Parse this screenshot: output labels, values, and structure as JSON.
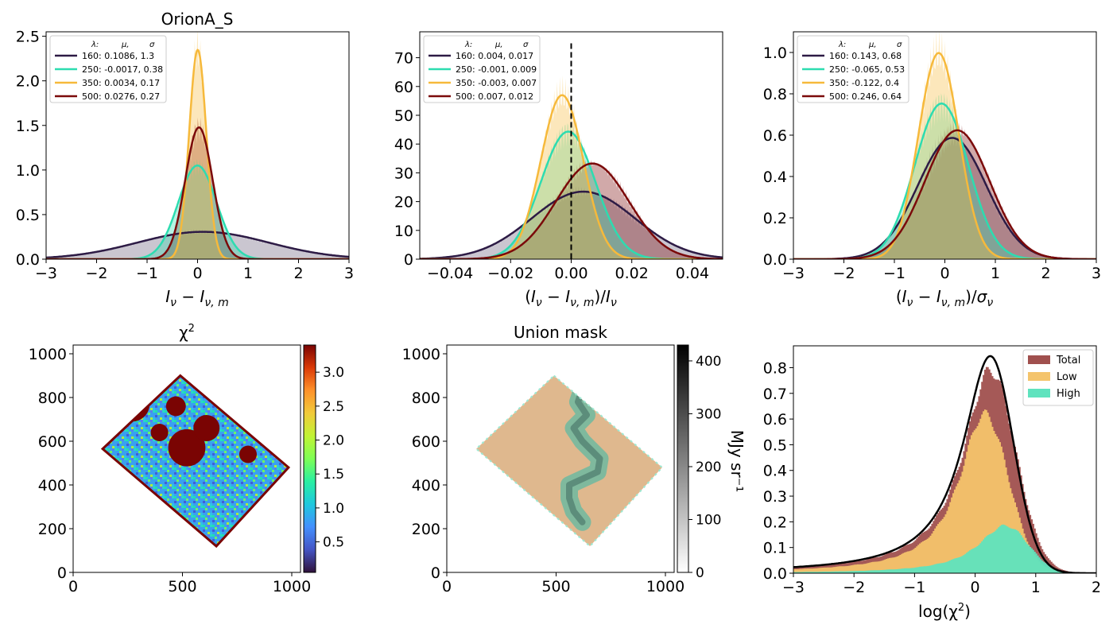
{
  "figure_title": "OrionA_S",
  "chart_data": [
    {
      "id": "p1",
      "type": "line",
      "title": "OrionA_S",
      "xlabel": "I_ν − I_ν,m",
      "ylabel": "",
      "xlim": [
        -3,
        3
      ],
      "ylim": [
        0,
        2.55
      ],
      "xticks": [
        -3,
        -2,
        -1,
        0,
        1,
        2,
        3
      ],
      "yticks": [
        0.0,
        0.5,
        1.0,
        1.5,
        2.0,
        2.5
      ],
      "legend_position": "upper-left",
      "legend_header": [
        "λ:",
        "μ,",
        "σ"
      ],
      "series": [
        {
          "name": "160",
          "label": "160: 0.1086,  1.3",
          "mu": 0.1086,
          "sigma": 1.3,
          "color": "#2d1b45"
        },
        {
          "name": "250",
          "label": "250: -0.0017,  0.38",
          "mu": -0.0017,
          "sigma": 0.38,
          "color": "#2ddcb0"
        },
        {
          "name": "350",
          "label": "350: 0.0034,  0.17",
          "mu": 0.0034,
          "sigma": 0.17,
          "color": "#f6b93b"
        },
        {
          "name": "500",
          "label": "500: 0.0276,  0.27",
          "mu": 0.0276,
          "sigma": 0.27,
          "color": "#7b0a0a"
        }
      ]
    },
    {
      "id": "p2",
      "type": "line",
      "title": "",
      "xlabel": "(I_ν − I_ν,m)/I_ν",
      "ylabel": "",
      "xlim": [
        -0.05,
        0.05
      ],
      "ylim": [
        0,
        79
      ],
      "xticks": [
        -0.04,
        -0.02,
        0.0,
        0.02,
        0.04
      ],
      "xtick_labels": [
        "−0.04",
        "−0.02",
        "0.00",
        "0.02",
        "0.04"
      ],
      "yticks": [
        0,
        10,
        20,
        30,
        40,
        50,
        60,
        70
      ],
      "vline": 0,
      "legend_position": "upper-left",
      "legend_header": [
        "λ:",
        "μ,",
        "σ"
      ],
      "series": [
        {
          "name": "160",
          "label": "160: 0.004,  0.017",
          "mu": 0.004,
          "sigma": 0.017,
          "color": "#2d1b45"
        },
        {
          "name": "250",
          "label": "250: -0.001,  0.009",
          "mu": -0.001,
          "sigma": 0.009,
          "color": "#2ddcb0"
        },
        {
          "name": "350",
          "label": "350: -0.003,  0.007",
          "mu": -0.003,
          "sigma": 0.007,
          "color": "#f6b93b"
        },
        {
          "name": "500",
          "label": "500: 0.007,  0.012",
          "mu": 0.007,
          "sigma": 0.012,
          "color": "#7b0a0a"
        }
      ]
    },
    {
      "id": "p3",
      "type": "line",
      "title": "",
      "xlabel": "(I_ν − I_ν,m)/σ_ν",
      "ylabel": "",
      "xlim": [
        -3,
        3
      ],
      "ylim": [
        0,
        1.1
      ],
      "xticks": [
        -3,
        -2,
        -1,
        0,
        1,
        2,
        3
      ],
      "yticks": [
        0.0,
        0.2,
        0.4,
        0.6,
        0.8,
        1.0
      ],
      "legend_position": "upper-left",
      "legend_header": [
        "λ:",
        "μ,",
        "σ"
      ],
      "series": [
        {
          "name": "160",
          "label": "160: 0.143,  0.68",
          "mu": 0.143,
          "sigma": 0.68,
          "color": "#2d1b45"
        },
        {
          "name": "250",
          "label": "250: -0.065,  0.53",
          "mu": -0.065,
          "sigma": 0.53,
          "color": "#2ddcb0"
        },
        {
          "name": "350",
          "label": "350: -0.122,  0.4",
          "mu": -0.122,
          "sigma": 0.4,
          "color": "#f6b93b"
        },
        {
          "name": "500",
          "label": "500: 0.246,  0.64",
          "mu": 0.246,
          "sigma": 0.64,
          "color": "#7b0a0a"
        }
      ]
    },
    {
      "id": "p4",
      "type": "heatmap",
      "title": "χ²",
      "xlim": [
        0,
        1040
      ],
      "ylim": [
        0,
        1040
      ],
      "xticks": [
        0,
        500,
        1000
      ],
      "yticks": [
        0,
        200,
        400,
        600,
        800,
        1000
      ],
      "colormap": "turbo",
      "colorbar_range": [
        0.05,
        3.4
      ],
      "colorbar_ticks": [
        0.5,
        1.0,
        1.5,
        2.0,
        2.5,
        3.0
      ],
      "region_corners": [
        [
          490,
          900
        ],
        [
          985,
          480
        ],
        [
          655,
          120
        ],
        [
          135,
          565
        ]
      ],
      "high_chi2_patches": [
        [
          520,
          570,
          85
        ],
        [
          270,
          770,
          80
        ],
        [
          610,
          660,
          60
        ],
        [
          690,
          830,
          45
        ],
        [
          395,
          640,
          40
        ],
        [
          230,
          290,
          35
        ],
        [
          470,
          760,
          45
        ],
        [
          800,
          540,
          40
        ]
      ]
    },
    {
      "id": "p5",
      "type": "heatmap",
      "title": "Union mask",
      "xlim": [
        0,
        1040
      ],
      "ylim": [
        0,
        1040
      ],
      "xticks": [
        0,
        500,
        1000
      ],
      "yticks": [
        0,
        200,
        400,
        600,
        800,
        1000
      ],
      "colormap": "Greys",
      "colorbar_label": "MJy sr⁻¹",
      "colorbar_range": [
        0,
        430
      ],
      "colorbar_ticks": [
        0,
        100,
        200,
        300,
        400
      ],
      "region_corners": [
        [
          490,
          900
        ],
        [
          985,
          480
        ],
        [
          655,
          120
        ],
        [
          135,
          565
        ]
      ],
      "mask_filament": [
        [
          620,
          840
        ],
        [
          600,
          780
        ],
        [
          640,
          720
        ],
        [
          580,
          660
        ],
        [
          620,
          600
        ],
        [
          700,
          520
        ],
        [
          690,
          460
        ],
        [
          560,
          400
        ],
        [
          560,
          340
        ],
        [
          580,
          280
        ],
        [
          620,
          230
        ]
      ]
    },
    {
      "id": "p6",
      "type": "bar",
      "title": "",
      "xlabel": "log(χ²)",
      "ylabel": "",
      "xlim": [
        -3,
        2
      ],
      "ylim": [
        0,
        0.885
      ],
      "xticks": [
        -3,
        -2,
        -1,
        0,
        1,
        2
      ],
      "yticks": [
        0.0,
        0.1,
        0.2,
        0.3,
        0.4,
        0.5,
        0.6,
        0.7,
        0.8
      ],
      "legend_position": "upper-right",
      "series": [
        {
          "name": "Total",
          "color": "#a0504e",
          "peak": 0.79,
          "peak_x": 0.25
        },
        {
          "name": "Low",
          "color": "#f4c46c",
          "peak": 0.62,
          "peak_x": 0.15
        },
        {
          "name": "High",
          "color": "#5fe3be",
          "peak": 0.185,
          "peak_x": 0.5
        }
      ],
      "fit_line": {
        "peak": 0.845,
        "peak_x": 0.25,
        "color": "#000000"
      }
    }
  ]
}
